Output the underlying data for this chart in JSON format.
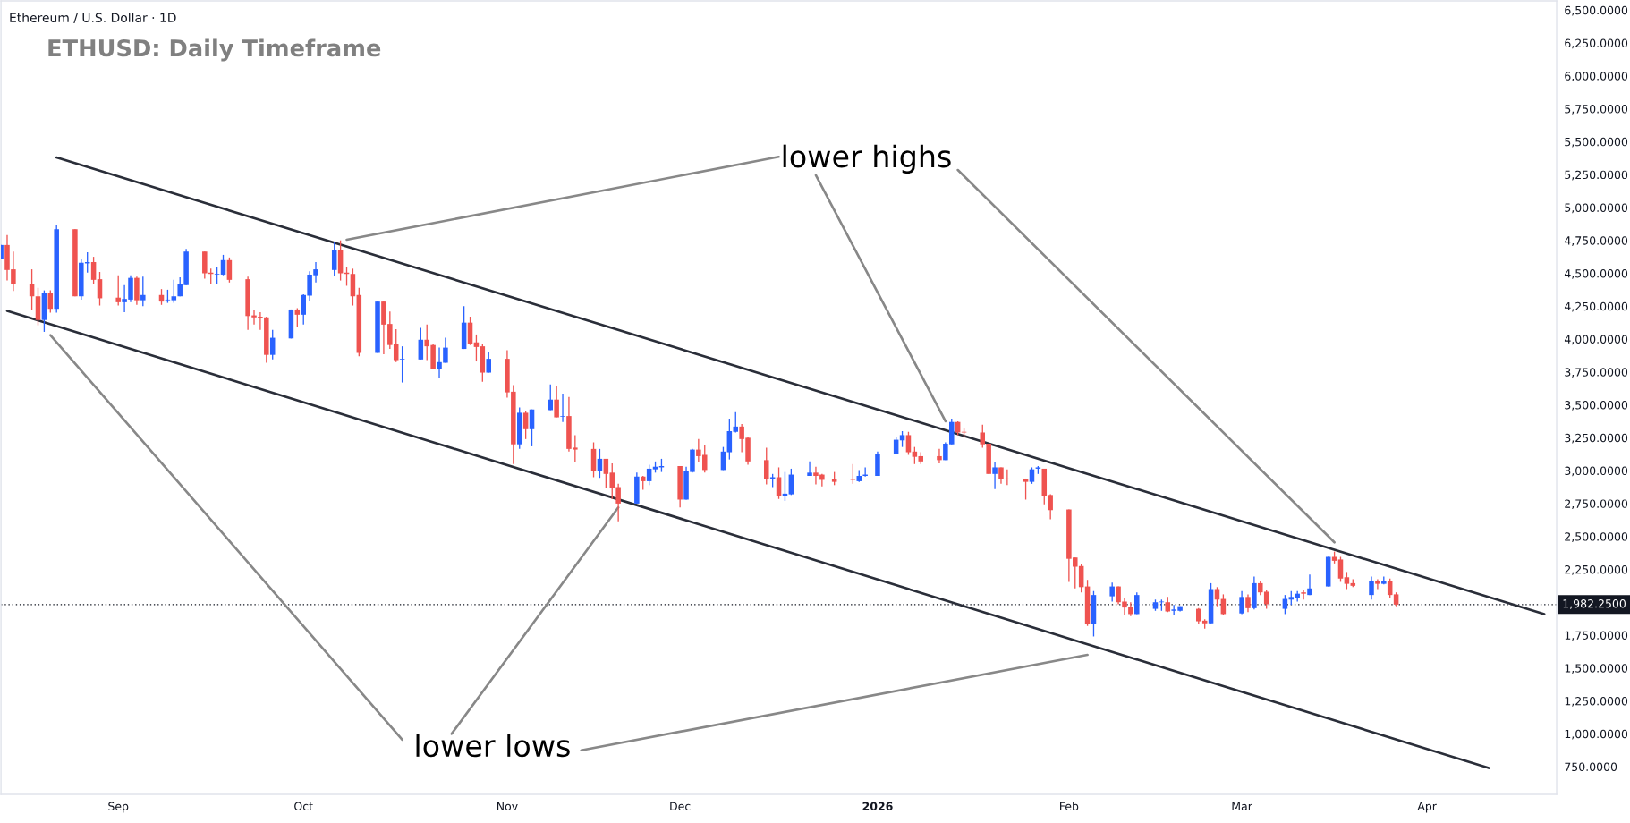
{
  "chart_data": {
    "type": "candlestick",
    "title": "ETHUSD: Daily Timeframe",
    "subtitle": "Ethereum / U.S. Dollar · 1D",
    "annotations": [
      "lower highs",
      "lower lows"
    ],
    "x": [
      "2025-08-13",
      "2025-08-14",
      "2025-08-15",
      "2025-08-18",
      "2025-08-19",
      "2025-08-20",
      "2025-08-21",
      "2025-08-22",
      "2025-08-25",
      "2025-08-26",
      "2025-08-27",
      "2025-08-28",
      "2025-08-29",
      "2025-09-01",
      "2025-09-02",
      "2025-09-03",
      "2025-09-04",
      "2025-09-05",
      "2025-09-08",
      "2025-09-09",
      "2025-09-10",
      "2025-09-11",
      "2025-09-12",
      "2025-09-15",
      "2025-09-16",
      "2025-09-17",
      "2025-09-18",
      "2025-09-19",
      "2025-09-22",
      "2025-09-23",
      "2025-09-24",
      "2025-09-25",
      "2025-09-26",
      "2025-09-29",
      "2025-09-30",
      "2025-10-01",
      "2025-10-02",
      "2025-10-03",
      "2025-10-06",
      "2025-10-07",
      "2025-10-08",
      "2025-10-09",
      "2025-10-10",
      "2025-10-13",
      "2025-10-14",
      "2025-10-15",
      "2025-10-16",
      "2025-10-17",
      "2025-10-20",
      "2025-10-21",
      "2025-10-22",
      "2025-10-23",
      "2025-10-24",
      "2025-10-27",
      "2025-10-28",
      "2025-10-29",
      "2025-10-30",
      "2025-10-31",
      "2025-11-03",
      "2025-11-04",
      "2025-11-05",
      "2025-11-06",
      "2025-11-07",
      "2025-11-10",
      "2025-11-11",
      "2025-11-12",
      "2025-11-13",
      "2025-11-14",
      "2025-11-17",
      "2025-11-18",
      "2025-11-19",
      "2025-11-20",
      "2025-11-21",
      "2025-11-24",
      "2025-11-25",
      "2025-11-26",
      "2025-11-27",
      "2025-11-28",
      "2025-12-01",
      "2025-12-02",
      "2025-12-03",
      "2025-12-04",
      "2025-12-05",
      "2025-12-08",
      "2025-12-09",
      "2025-12-10",
      "2025-12-11",
      "2025-12-12",
      "2025-12-15",
      "2025-12-16",
      "2025-12-17",
      "2025-12-18",
      "2025-12-19",
      "2025-12-22",
      "2025-12-23",
      "2025-12-24",
      "2025-12-26",
      "2025-12-29",
      "2025-12-30",
      "2025-12-31",
      "2026-01-02",
      "2026-01-05",
      "2026-01-06",
      "2026-01-07",
      "2026-01-08",
      "2026-01-09",
      "2026-01-12",
      "2026-01-13",
      "2026-01-14",
      "2026-01-15",
      "2026-01-16",
      "2026-01-19",
      "2026-01-20",
      "2026-01-21",
      "2026-01-22",
      "2026-01-23",
      "2026-01-26",
      "2026-01-27",
      "2026-01-28",
      "2026-01-29",
      "2026-01-30",
      "2026-02-02",
      "2026-02-03",
      "2026-02-04",
      "2026-02-05",
      "2026-02-06",
      "2026-02-09",
      "2026-02-10",
      "2026-02-11",
      "2026-02-12",
      "2026-02-13",
      "2026-02-16",
      "2026-02-17",
      "2026-02-18",
      "2026-02-19",
      "2026-02-20",
      "2026-02-23",
      "2026-02-24",
      "2026-02-25",
      "2026-02-26",
      "2026-02-27",
      "2026-03-02",
      "2026-03-03",
      "2026-03-04",
      "2026-03-05",
      "2026-03-06",
      "2026-03-09",
      "2026-03-10",
      "2026-03-11",
      "2026-03-12",
      "2026-03-13",
      "2026-03-16",
      "2026-03-17",
      "2026-03-18",
      "2026-03-19",
      "2026-03-20",
      "2026-03-23",
      "2026-03-24",
      "2026-03-25",
      "2026-03-26",
      "2026-03-27"
    ],
    "ohlc": [
      [
        4610,
        4715,
        4610,
        4715
      ],
      [
        4715,
        4790,
        4445,
        4525
      ],
      [
        4530,
        4665,
        4365,
        4420
      ],
      [
        4420,
        4530,
        4220,
        4325
      ],
      [
        4325,
        4390,
        4105,
        4145
      ],
      [
        4145,
        4370,
        4055,
        4350
      ],
      [
        4350,
        4370,
        4200,
        4230
      ],
      [
        4230,
        4865,
        4200,
        4835
      ],
      [
        4835,
        4835,
        4325,
        4325
      ],
      [
        4325,
        4605,
        4300,
        4580
      ],
      [
        4575,
        4660,
        4505,
        4585
      ],
      [
        4585,
        4625,
        4420,
        4450
      ],
      [
        4455,
        4510,
        4255,
        4310
      ],
      [
        4315,
        4485,
        4255,
        4280
      ],
      [
        4280,
        4410,
        4205,
        4305
      ],
      [
        4300,
        4485,
        4280,
        4465
      ],
      [
        4465,
        4475,
        4260,
        4295
      ],
      [
        4295,
        4475,
        4250,
        4335
      ],
      [
        4335,
        4380,
        4260,
        4285
      ],
      [
        4295,
        4375,
        4275,
        4300
      ],
      [
        4295,
        4450,
        4275,
        4325
      ],
      [
        4325,
        4470,
        4325,
        4415
      ],
      [
        4410,
        4685,
        4410,
        4665
      ],
      [
        4665,
        4665,
        4460,
        4500
      ],
      [
        4505,
        4535,
        4420,
        4495
      ],
      [
        4490,
        4550,
        4420,
        4495
      ],
      [
        4490,
        4640,
        4485,
        4600
      ],
      [
        4600,
        4620,
        4430,
        4450
      ],
      [
        4455,
        4475,
        4070,
        4175
      ],
      [
        4180,
        4225,
        4110,
        4165
      ],
      [
        4170,
        4205,
        4070,
        4160
      ],
      [
        4165,
        4170,
        3820,
        3880
      ],
      [
        3880,
        4070,
        3845,
        4010
      ],
      [
        4005,
        4225,
        4005,
        4225
      ],
      [
        4225,
        4235,
        4090,
        4185
      ],
      [
        4185,
        4340,
        4110,
        4335
      ],
      [
        4330,
        4515,
        4290,
        4490
      ],
      [
        4485,
        4585,
        4430,
        4530
      ],
      [
        4525,
        4735,
        4480,
        4680
      ],
      [
        4680,
        4750,
        4445,
        4500
      ],
      [
        4505,
        4550,
        4405,
        4495
      ],
      [
        4495,
        4535,
        4255,
        4325
      ],
      [
        4335,
        4390,
        3870,
        3895
      ],
      [
        3895,
        4285,
        3895,
        4285
      ],
      [
        4285,
        4285,
        3885,
        4110
      ],
      [
        4115,
        4210,
        3925,
        3955
      ],
      [
        3960,
        4075,
        3825,
        3840
      ],
      [
        3845,
        3945,
        3670,
        3850
      ],
      [
        3845,
        4085,
        3845,
        3995
      ],
      [
        3995,
        4110,
        3840,
        3945
      ],
      [
        3955,
        3965,
        3770,
        3770
      ],
      [
        3770,
        3935,
        3705,
        3825
      ],
      [
        3820,
        4010,
        3820,
        3935
      ],
      [
        3925,
        4250,
        3925,
        4125
      ],
      [
        4125,
        4170,
        3955,
        3965
      ],
      [
        3975,
        4035,
        3830,
        3940
      ],
      [
        3945,
        3960,
        3675,
        3745
      ],
      [
        3745,
        3900,
        3745,
        3850
      ],
      [
        3850,
        3915,
        3555,
        3595
      ],
      [
        3600,
        3650,
        3050,
        3200
      ],
      [
        3200,
        3480,
        3165,
        3440
      ],
      [
        3440,
        3450,
        3240,
        3315
      ],
      [
        3315,
        3465,
        3185,
        3465
      ],
      [
        3460,
        3655,
        3460,
        3540
      ],
      [
        3540,
        3640,
        3405,
        3405
      ],
      [
        3410,
        3585,
        3370,
        3415
      ],
      [
        3415,
        3560,
        3145,
        3165
      ],
      [
        3175,
        3270,
        3065,
        3160
      ],
      [
        3165,
        3215,
        2950,
        2995
      ],
      [
        2995,
        3165,
        2945,
        3090
      ],
      [
        3090,
        3090,
        2865,
        2975
      ],
      [
        2985,
        3055,
        2785,
        2865
      ],
      [
        2875,
        2900,
        2615,
        2750
      ],
      [
        2750,
        2985,
        2750,
        2955
      ],
      [
        2955,
        2960,
        2855,
        2920
      ],
      [
        2920,
        3045,
        2890,
        3015
      ],
      [
        3010,
        3070,
        2985,
        3030
      ],
      [
        3025,
        3090,
        2990,
        3035
      ],
      [
        3035,
        3035,
        2720,
        2780
      ],
      [
        2780,
        3030,
        2780,
        2995
      ],
      [
        2990,
        3165,
        2985,
        3160
      ],
      [
        3160,
        3240,
        3065,
        3110
      ],
      [
        3120,
        3195,
        2985,
        3005
      ],
      [
        3005,
        3180,
        3005,
        3145
      ],
      [
        3140,
        3395,
        3085,
        3300
      ],
      [
        3295,
        3445,
        3290,
        3335
      ],
      [
        3335,
        3355,
        3140,
        3240
      ],
      [
        3250,
        3260,
        3045,
        3070
      ],
      [
        3080,
        3175,
        2895,
        2935
      ],
      [
        2940,
        2975,
        2875,
        2950
      ],
      [
        2950,
        3025,
        2785,
        2805
      ],
      [
        2805,
        2990,
        2770,
        2825
      ],
      [
        2820,
        3015,
        2815,
        2970
      ],
      [
        2960,
        3070,
        2960,
        2985
      ],
      [
        2985,
        3030,
        2895,
        2960
      ],
      [
        2970,
        2975,
        2880,
        2930
      ],
      [
        2935,
        2990,
        2890,
        2915
      ],
      [
        2935,
        3050,
        2900,
        2930
      ],
      [
        2920,
        3005,
        2915,
        2960
      ],
      [
        2960,
        3025,
        2955,
        2970
      ],
      [
        2960,
        3145,
        2960,
        3125
      ],
      [
        3130,
        3260,
        3125,
        3235
      ],
      [
        3230,
        3300,
        3180,
        3270
      ],
      [
        3270,
        3295,
        3120,
        3140
      ],
      [
        3145,
        3180,
        3050,
        3105
      ],
      [
        3110,
        3140,
        3050,
        3070
      ],
      [
        3110,
        3165,
        3055,
        3080
      ],
      [
        3080,
        3215,
        3080,
        3205
      ],
      [
        3200,
        3395,
        3200,
        3370
      ],
      [
        3370,
        3375,
        3270,
        3290
      ],
      [
        3295,
        3320,
        3250,
        3290
      ],
      [
        3290,
        3350,
        3175,
        3200
      ],
      [
        3205,
        3205,
        2975,
        2975
      ],
      [
        2975,
        3065,
        2860,
        3025
      ],
      [
        3025,
        3025,
        2900,
        2935
      ],
      [
        2940,
        3010,
        2890,
        2935
      ],
      [
        2935,
        2940,
        2780,
        2915
      ],
      [
        2915,
        3025,
        2900,
        3010
      ],
      [
        3015,
        3035,
        2975,
        3025
      ],
      [
        3015,
        3015,
        2745,
        2805
      ],
      [
        2815,
        2820,
        2630,
        2700
      ],
      [
        2705,
        2705,
        2155,
        2330
      ],
      [
        2340,
        2340,
        2105,
        2270
      ],
      [
        2275,
        2290,
        2075,
        2115
      ],
      [
        2120,
        2170,
        1820,
        1835
      ],
      [
        1835,
        2085,
        1740,
        2055
      ],
      [
        2045,
        2150,
        2005,
        2120
      ],
      [
        2120,
        2120,
        1985,
        2000
      ],
      [
        2005,
        2030,
        1905,
        1960
      ],
      [
        1965,
        2000,
        1895,
        1910
      ],
      [
        1910,
        2075,
        1910,
        2055
      ],
      [
        1950,
        2020,
        1935,
        2000
      ],
      [
        2000,
        2020,
        1935,
        2005
      ],
      [
        2000,
        2040,
        1925,
        1930
      ],
      [
        1935,
        1980,
        1905,
        1945
      ],
      [
        1935,
        1970,
        1930,
        1970
      ],
      [
        1950,
        1955,
        1835,
        1855
      ],
      [
        1860,
        1870,
        1800,
        1840
      ],
      [
        1840,
        2145,
        1840,
        2100
      ],
      [
        2100,
        2115,
        1970,
        2020
      ],
      [
        2025,
        2060,
        1905,
        1910
      ],
      [
        1915,
        2085,
        1910,
        2040
      ],
      [
        2040,
        2060,
        1925,
        1955
      ],
      [
        1955,
        2195,
        1945,
        2145
      ],
      [
        2145,
        2160,
        2055,
        2075
      ],
      [
        2080,
        2095,
        1950,
        1985
      ],
      [
        1950,
        2055,
        1910,
        2025
      ],
      [
        2020,
        2085,
        1980,
        2040
      ],
      [
        2030,
        2085,
        2005,
        2065
      ],
      [
        2075,
        2095,
        2020,
        2065
      ],
      [
        2055,
        2210,
        2055,
        2105
      ],
      [
        2120,
        2345,
        2120,
        2345
      ],
      [
        2345,
        2385,
        2295,
        2315
      ],
      [
        2325,
        2345,
        2155,
        2180
      ],
      [
        2190,
        2230,
        2100,
        2140
      ],
      [
        2145,
        2175,
        2115,
        2125
      ],
      [
        2055,
        2195,
        2020,
        2160
      ],
      [
        2160,
        2175,
        2100,
        2140
      ],
      [
        2140,
        2195,
        2135,
        2160
      ],
      [
        2160,
        2180,
        2030,
        2055
      ],
      [
        2060,
        2075,
        1970,
        1982.25
      ]
    ],
    "colors": [
      "#2962ff",
      "#ef5350",
      "#ef5350",
      "#ef5350",
      "#ef5350",
      "#2962ff",
      "#ef5350",
      "#2962ff",
      "#ef5350",
      "#2962ff",
      "#2962ff",
      "#ef5350",
      "#ef5350",
      "#ef5350",
      "#2962ff",
      "#2962ff",
      "#ef5350",
      "#2962ff",
      "#ef5350",
      "#2962ff",
      "#2962ff",
      "#2962ff",
      "#2962ff",
      "#ef5350",
      "#ef5350",
      "#2962ff",
      "#2962ff",
      "#ef5350",
      "#ef5350",
      "#ef5350",
      "#ef5350",
      "#ef5350",
      "#2962ff",
      "#2962ff",
      "#ef5350",
      "#2962ff",
      "#2962ff",
      "#2962ff",
      "#2962ff",
      "#ef5350",
      "#ef5350",
      "#ef5350",
      "#ef5350",
      "#2962ff",
      "#ef5350",
      "#ef5350",
      "#ef5350",
      "#2962ff",
      "#2962ff",
      "#ef5350",
      "#ef5350",
      "#2962ff",
      "#2962ff",
      "#2962ff",
      "#ef5350",
      "#ef5350",
      "#ef5350",
      "#2962ff",
      "#ef5350",
      "#ef5350",
      "#2962ff",
      "#ef5350",
      "#2962ff",
      "#2962ff",
      "#ef5350",
      "#2962ff",
      "#ef5350",
      "#ef5350",
      "#ef5350",
      "#2962ff",
      "#ef5350",
      "#ef5350",
      "#ef5350",
      "#2962ff",
      "#ef5350",
      "#2962ff",
      "#2962ff",
      "#2962ff",
      "#ef5350",
      "#2962ff",
      "#2962ff",
      "#ef5350",
      "#ef5350",
      "#2962ff",
      "#2962ff",
      "#2962ff",
      "#ef5350",
      "#ef5350",
      "#ef5350",
      "#2962ff",
      "#ef5350",
      "#2962ff",
      "#2962ff",
      "#2962ff",
      "#ef5350",
      "#ef5350",
      "#ef5350",
      "#ef5350",
      "#2962ff",
      "#2962ff",
      "#2962ff",
      "#2962ff",
      "#2962ff",
      "#ef5350",
      "#ef5350",
      "#ef5350",
      "#ef5350",
      "#2962ff",
      "#2962ff",
      "#ef5350",
      "#ef5350",
      "#ef5350",
      "#ef5350",
      "#2962ff",
      "#ef5350",
      "#ef5350",
      "#ef5350",
      "#2962ff",
      "#2962ff",
      "#ef5350",
      "#ef5350",
      "#ef5350",
      "#ef5350",
      "#ef5350",
      "#ef5350",
      "#2962ff",
      "#2962ff",
      "#ef5350",
      "#ef5350",
      "#ef5350",
      "#2962ff",
      "#2962ff",
      "#2962ff",
      "#ef5350",
      "#2962ff",
      "#2962ff",
      "#ef5350",
      "#ef5350",
      "#2962ff",
      "#ef5350",
      "#ef5350",
      "#2962ff",
      "#ef5350",
      "#2962ff",
      "#ef5350",
      "#ef5350",
      "#2962ff",
      "#2962ff",
      "#2962ff",
      "#ef5350",
      "#2962ff",
      "#2962ff",
      "#ef5350",
      "#ef5350",
      "#ef5350",
      "#ef5350",
      "#2962ff",
      "#ef5350",
      "#2962ff",
      "#ef5350",
      "#ef5350"
    ],
    "series": [
      {
        "type": "line",
        "color": "#2a2e39",
        "x": [
          "2025-08-22",
          "2026-04-20"
        ],
        "values": [
          5380,
          1910
        ]
      },
      {
        "type": "line",
        "color": "#2a2e39",
        "x": [
          "2025-08-14",
          "2026-04-11"
        ],
        "values": [
          4215,
          740
        ]
      },
      {
        "type": "line",
        "color": "#888888",
        "x": [
          "2025-12-17",
          "2025-10-08"
        ],
        "values": [
          5385,
          4755
        ]
      },
      {
        "type": "line",
        "color": "#888888",
        "x": [
          "2025-12-23",
          "2026-01-13"
        ],
        "values": [
          5245,
          3375
        ]
      },
      {
        "type": "line",
        "color": "#888888",
        "x": [
          "2026-01-15",
          "2026-03-17"
        ],
        "values": [
          5285,
          2455
        ]
      },
      {
        "type": "line",
        "color": "#888888",
        "x": [
          "2025-10-17",
          "2025-08-21"
        ],
        "values": [
          955,
          4030
        ]
      },
      {
        "type": "line",
        "color": "#888888",
        "x": [
          "2025-10-25",
          "2025-11-21"
        ],
        "values": [
          1000,
          2720
        ]
      },
      {
        "type": "line",
        "color": "#888888",
        "x": [
          "2025-11-15",
          "2026-02-05"
        ],
        "values": [
          875,
          1600
        ]
      }
    ],
    "xlim": [
      "2025-08-13",
      "2026-04-22"
    ],
    "xticks": [
      {
        "value": "2025-09-01",
        "label": "Sep"
      },
      {
        "value": "2025-10-01",
        "label": "Oct"
      },
      {
        "value": "2025-11-03",
        "label": "Nov"
      },
      {
        "value": "2025-12-01",
        "label": "Dec"
      },
      {
        "value": "2026-01-02",
        "label": "2026"
      },
      {
        "value": "2026-02-02",
        "label": "Feb"
      },
      {
        "value": "2026-03-02",
        "label": "Mar"
      },
      {
        "value": "2026-04-01",
        "label": "Apr"
      }
    ],
    "ylim": [
      540,
      6570
    ],
    "yticks": [
      {
        "value": 6500,
        "label": "6,500.0000"
      },
      {
        "value": 6250,
        "label": "6,250.0000"
      },
      {
        "value": 6000,
        "label": "6,000.0000"
      },
      {
        "value": 5750,
        "label": "5,750.0000"
      },
      {
        "value": 5500,
        "label": "5,500.0000"
      },
      {
        "value": 5250,
        "label": "5,250.0000"
      },
      {
        "value": 5000,
        "label": "5,000.0000"
      },
      {
        "value": 4750,
        "label": "4,750.0000"
      },
      {
        "value": 4500,
        "label": "4,500.0000"
      },
      {
        "value": 4250,
        "label": "4,250.0000"
      },
      {
        "value": 4000,
        "label": "4,000.0000"
      },
      {
        "value": 3750,
        "label": "3,750.0000"
      },
      {
        "value": 3500,
        "label": "3,500.0000"
      },
      {
        "value": 3250,
        "label": "3,250.0000"
      },
      {
        "value": 3000,
        "label": "3,000.0000"
      },
      {
        "value": 2750,
        "label": "2,750.0000"
      },
      {
        "value": 2500,
        "label": "2,500.0000"
      },
      {
        "value": 2250,
        "label": "2,250.0000"
      },
      {
        "value": 1750,
        "label": "1,750.0000"
      },
      {
        "value": 1500,
        "label": "1,500.0000"
      },
      {
        "value": 1250,
        "label": "1,250.0000"
      },
      {
        "value": 1000,
        "label": "1,000.0000"
      },
      {
        "value": 750,
        "label": "750.0000"
      }
    ],
    "ref_lines": [
      {
        "axis": "y",
        "value": 1982.25,
        "label": "1,982.2500",
        "color": "#131722",
        "line_style": "dotted"
      }
    ]
  }
}
